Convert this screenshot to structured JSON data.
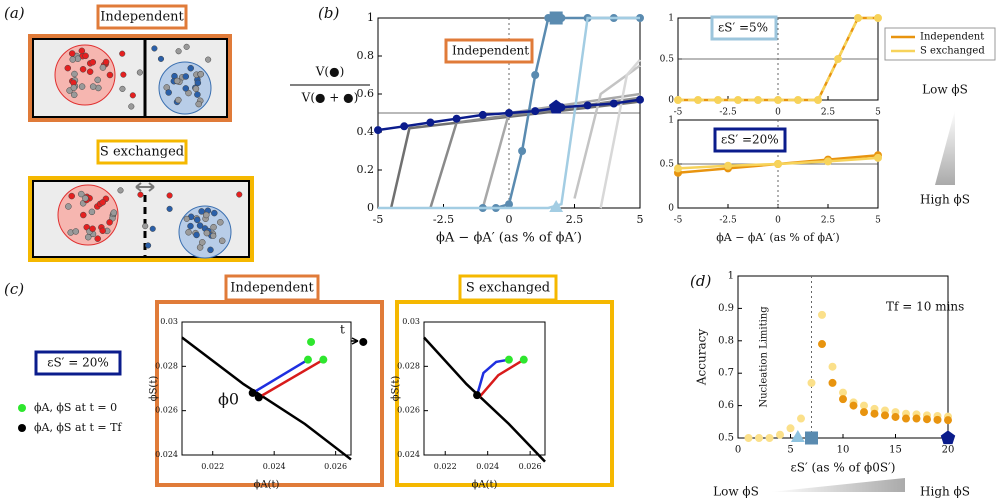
{
  "panel_labels": [
    "(a)",
    "(b)",
    "(c)",
    "(d)"
  ],
  "panel_a": {
    "top_title": "Independent",
    "bottom_title": "S exchanged"
  },
  "panel_b": {
    "ratio_top": "V(●)",
    "ratio_bottom": "V(● + ●)",
    "low": "Low ϕS",
    "high": "High ϕS"
  },
  "panel_c": {
    "left_title": "Independent",
    "right_title": "S exchanged",
    "eps": "εS′ = 20%",
    "legend": [
      "ϕA, ϕS at t = 0",
      "ϕA, ϕS at t = Tf"
    ]
  },
  "panel_d": {
    "low": "Low ϕS",
    "high": "High ϕS"
  },
  "chart_data": [
    {
      "type": "line",
      "xlabel": "ϕA − ϕA′ (as % of ϕA′)",
      "annotations": [
        "Independent"
      ],
      "xlim": [
        -5,
        5
      ],
      "ylim": [
        0,
        1
      ],
      "xticks": [
        -5,
        -2.5,
        0,
        2.5,
        5
      ],
      "yticks": [
        0,
        0.2,
        0.4,
        0.6,
        0.8,
        1
      ],
      "hline": 0.5,
      "vline": 0,
      "series": [
        {
          "color": "#707070",
          "x": [
            -4.5,
            -3.8,
            5
          ],
          "values": [
            0,
            0.42,
            0.56
          ]
        },
        {
          "color": "#8a8a8a",
          "x": [
            -3,
            -2,
            5
          ],
          "values": [
            0,
            0.45,
            0.58
          ]
        },
        {
          "color": "#a8a8a8",
          "x": [
            -1,
            0,
            5
          ],
          "values": [
            0,
            0.5,
            0.6
          ]
        },
        {
          "color": "#c4c4c4",
          "x": [
            2.5,
            3.5,
            5
          ],
          "values": [
            0.05,
            0.6,
            0.75
          ]
        },
        {
          "color": "#d8d8d8",
          "x": [
            3.5,
            4.5,
            5
          ],
          "values": [
            0,
            0.7,
            0.78
          ]
        },
        {
          "color": "#5a8bb0",
          "marker": "circle",
          "x": [
            -1,
            -0.5,
            0,
            0.5,
            1,
            1.5,
            2,
            3,
            4,
            5
          ],
          "values": [
            0,
            0,
            0.02,
            0.3,
            0.7,
            1,
            1,
            1,
            1,
            1
          ]
        },
        {
          "color": "#a3cde3",
          "x": [
            -5,
            1.5,
            2,
            2.5,
            3,
            5
          ],
          "values": [
            0,
            0,
            0.02,
            0.5,
            1,
            1
          ]
        },
        {
          "color": "#0b1c8c",
          "marker": "circle",
          "x": [
            -5,
            -4,
            -3,
            -2,
            -1,
            0,
            1,
            2,
            3,
            4,
            5
          ],
          "values": [
            0.41,
            0.43,
            0.45,
            0.47,
            0.49,
            0.5,
            0.51,
            0.53,
            0.54,
            0.55,
            0.57
          ]
        },
        {
          "color": "#5a8bb0",
          "line": false,
          "marker": "square",
          "x": [
            1.8
          ],
          "values": [
            1
          ]
        },
        {
          "color": "#a3cde3",
          "line": false,
          "marker": "triangle",
          "x": [
            1.8
          ],
          "values": [
            0
          ]
        },
        {
          "color": "#0b1c8c",
          "line": false,
          "marker": "pentagon",
          "x": [
            1.8
          ],
          "values": [
            0.53
          ]
        }
      ]
    },
    {
      "type": "line",
      "annotations": [
        "εS′ =5%"
      ],
      "xlim": [
        -5,
        5
      ],
      "ylim": [
        0,
        1
      ],
      "xticks": [
        -5,
        -2.5,
        0,
        2.5,
        5
      ],
      "yticks": [
        0,
        0.5,
        1
      ],
      "hline": 0.5,
      "vline": 0,
      "series": [
        {
          "name": "Independent",
          "color": "#e8940f",
          "x": [
            -5,
            2,
            4,
            5
          ],
          "values": [
            0,
            0,
            1,
            1
          ]
        },
        {
          "name": "S exchanged",
          "color": "#f7d35a",
          "dash": true,
          "marker": "circle",
          "x": [
            -5,
            -4,
            -3,
            -2,
            -1,
            0,
            1,
            2,
            3,
            4,
            5
          ],
          "values": [
            0,
            0,
            0,
            0,
            0,
            0,
            0,
            0,
            0.5,
            1,
            1
          ]
        }
      ]
    },
    {
      "type": "line",
      "xlabel": "ϕA − ϕA′ (as % of ϕA′)",
      "annotations": [
        "εS′ =20%"
      ],
      "xlim": [
        -5,
        5
      ],
      "ylim": [
        0,
        1
      ],
      "xticks": [
        -5,
        -2.5,
        0,
        2.5,
        5
      ],
      "yticks": [
        0,
        0.5,
        1
      ],
      "hline": 0.5,
      "vline": 0,
      "series": [
        {
          "color": "#e8940f",
          "marker": "circle",
          "x": [
            -5,
            -2.5,
            0,
            2.5,
            5
          ],
          "values": [
            0.4,
            0.45,
            0.5,
            0.55,
            0.6
          ]
        },
        {
          "color": "#f7d35a",
          "marker": "circle",
          "x": [
            -5,
            -2.5,
            0,
            2.5,
            5
          ],
          "values": [
            0.45,
            0.48,
            0.5,
            0.53,
            0.57
          ]
        }
      ]
    },
    {
      "type": "line",
      "xlabel": "ϕA(t)",
      "ylabel": "ϕS(t)",
      "annotations": [
        "ϕ0",
        "t"
      ],
      "xlim": [
        0.021,
        0.0265
      ],
      "ylim": [
        0.024,
        0.03
      ],
      "xticks": [
        0.022,
        0.024,
        0.026
      ],
      "yticks": [
        0.024,
        0.026,
        0.028,
        0.03
      ],
      "series": [
        {
          "color": "#000000",
          "width": 2.5,
          "x": [
            0.021,
            0.023,
            0.025,
            0.0265
          ],
          "values": [
            0.0293,
            0.0272,
            0.0254,
            0.0238
          ]
        },
        {
          "color": "#1f2fe0",
          "x": [
            0.0233,
            0.0251
          ],
          "values": [
            0.0268,
            0.0283
          ]
        },
        {
          "color": "#d81b1b",
          "x": [
            0.0235,
            0.0256
          ],
          "values": [
            0.0266,
            0.0283
          ]
        },
        {
          "color": "#2ee62e",
          "line": false,
          "marker": "circle",
          "x": [
            0.0251,
            0.0256,
            0.0252
          ],
          "values": [
            0.0283,
            0.0283,
            0.0291
          ]
        },
        {
          "color": "#000000",
          "line": false,
          "marker": "circle",
          "x": [
            0.0233,
            0.0235,
            0.0269
          ],
          "values": [
            0.0268,
            0.0266,
            0.0291
          ]
        }
      ]
    },
    {
      "type": "line",
      "xlabel": "ϕA(t)",
      "ylabel": "ϕS(t)",
      "xlim": [
        0.021,
        0.0267
      ],
      "ylim": [
        0.024,
        0.03
      ],
      "xticks": [
        0.022,
        0.024,
        0.026
      ],
      "yticks": [
        0.024,
        0.026,
        0.028,
        0.03
      ],
      "series": [
        {
          "color": "#000000",
          "width": 2.5,
          "x": [
            0.021,
            0.023,
            0.025,
            0.0267
          ],
          "values": [
            0.0293,
            0.0272,
            0.0254,
            0.0237
          ]
        },
        {
          "color": "#1f2fe0",
          "x": [
            0.0235,
            0.0238,
            0.0244,
            0.025
          ],
          "values": [
            0.0267,
            0.0277,
            0.0282,
            0.0283
          ]
        },
        {
          "color": "#d81b1b",
          "x": [
            0.0236,
            0.0245,
            0.0257
          ],
          "values": [
            0.0266,
            0.0276,
            0.0283
          ]
        },
        {
          "color": "#2ee62e",
          "line": false,
          "marker": "circle",
          "x": [
            0.025,
            0.0257
          ],
          "values": [
            0.0283,
            0.0283
          ]
        },
        {
          "color": "#000000",
          "line": false,
          "marker": "circle",
          "x": [
            0.0235
          ],
          "values": [
            0.0267
          ]
        }
      ]
    },
    {
      "type": "scatter",
      "xlabel": "εS′ (as % of ϕ0S′)",
      "ylabel": "Accuracy",
      "annotations": [
        "Tf = 10 mins",
        "Nucleation Limiting"
      ],
      "xlim": [
        0,
        20
      ],
      "ylim": [
        0.5,
        1
      ],
      "xticks": [
        0,
        5,
        10,
        15,
        20
      ],
      "yticks": [
        0.5,
        0.6,
        0.7,
        0.8,
        0.9,
        1
      ],
      "vline": 7,
      "series": [
        {
          "color": "#fbe08a",
          "marker": "circle",
          "x": [
            1,
            2,
            3,
            4,
            5,
            6,
            7,
            8,
            9,
            10,
            11,
            12,
            13,
            14,
            15,
            16,
            17,
            18,
            19,
            20
          ],
          "values": [
            0.5,
            0.5,
            0.5,
            0.51,
            0.53,
            0.56,
            0.67,
            0.88,
            0.72,
            0.64,
            0.61,
            0.6,
            0.59,
            0.585,
            0.58,
            0.575,
            0.573,
            0.57,
            0.568,
            0.566
          ]
        },
        {
          "color": "#e8940f",
          "marker": "circle",
          "x": [
            8,
            9,
            10,
            11,
            12,
            13,
            14,
            15,
            16,
            17,
            18,
            19,
            20
          ],
          "values": [
            0.79,
            0.67,
            0.62,
            0.6,
            0.58,
            0.575,
            0.57,
            0.565,
            0.56,
            0.56,
            0.558,
            0.556,
            0.555
          ]
        },
        {
          "color": "#8fc3df",
          "marker": "triangle",
          "x": [
            5.7
          ],
          "values": [
            0.5
          ]
        },
        {
          "color": "#5a8bb0",
          "marker": "square",
          "x": [
            7
          ],
          "values": [
            0.5
          ]
        },
        {
          "color": "#0b1c8c",
          "marker": "pentagon",
          "x": [
            20
          ],
          "values": [
            0.5
          ]
        }
      ]
    }
  ]
}
